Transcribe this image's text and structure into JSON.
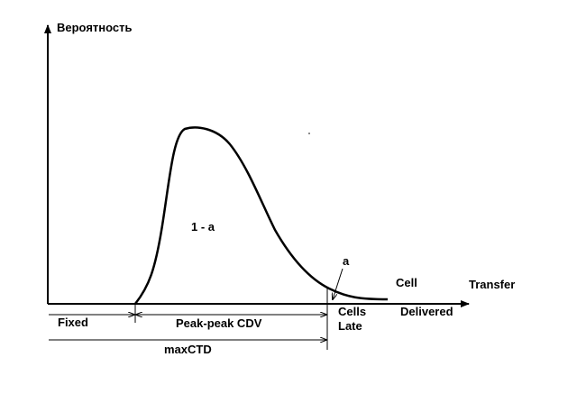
{
  "diagram": {
    "y_axis_label": "Вероятность",
    "x_axis_label": "Transfer",
    "area_label_main": "1 - a",
    "area_label_tail": "a",
    "cell_label": "Cell",
    "delivered_label": "Delivered",
    "cells_late_line1": "Cells",
    "cells_late_line2": "Late",
    "fixed_label": "Fixed",
    "peak_cdv_label": "Peak-peak CDV",
    "max_ctd_label": "maxCTD"
  },
  "colors": {
    "ink": "#000000",
    "background": "#ffffff"
  }
}
